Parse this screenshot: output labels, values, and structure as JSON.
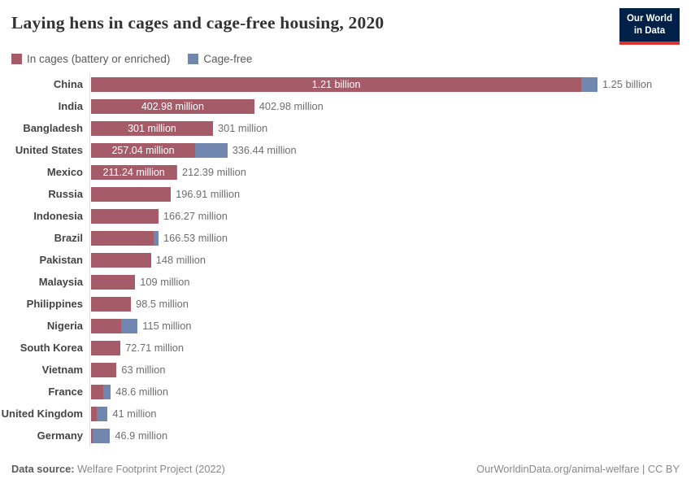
{
  "title": "Laying hens in cages and cage-free housing, 2020",
  "logo": {
    "line1": "Our World",
    "line2": "in Data",
    "bg_color": "#002147",
    "accent_color": "#e0312c"
  },
  "legend": [
    {
      "label": "In cages (battery or enriched)",
      "color": "#a65c68"
    },
    {
      "label": "Cage-free",
      "color": "#7187b0"
    }
  ],
  "colors": {
    "cages": "#a65c68",
    "cage_free": "#7187b0",
    "axis_line": "#dedede",
    "title_text": "#333333",
    "label_text": "#444444",
    "value_text": "#6e6e6e"
  },
  "chart_data": {
    "type": "bar",
    "orientation": "horizontal",
    "stacked": true,
    "unit": "million laying hens",
    "xlim": [
      0,
      1254
    ],
    "grid": false,
    "legend_position": "top-left",
    "categories": [
      "China",
      "India",
      "Bangladesh",
      "United States",
      "Mexico",
      "Russia",
      "Indonesia",
      "Brazil",
      "Pakistan",
      "Malaysia",
      "Philippines",
      "Nigeria",
      "South Korea",
      "Vietnam",
      "France",
      "United Kingdom",
      "Germany"
    ],
    "series": [
      {
        "name": "In cages (battery or enriched)",
        "values": [
          1210,
          402.98,
          301,
          257.04,
          211.24,
          196.91,
          166.27,
          154.5,
          148,
          109,
          98.5,
          74,
          72.71,
          63,
          29,
          13.5,
          4
        ]
      },
      {
        "name": "Cage-free",
        "values": [
          40,
          0,
          0,
          79.4,
          1.15,
          0,
          0,
          12.03,
          0,
          0,
          0,
          41,
          0,
          0,
          19.6,
          27.5,
          42.9
        ]
      }
    ],
    "inside_labels": [
      "1.21 billion",
      "402.98 million",
      "301 million",
      "257.04 million",
      "211.24 million",
      "",
      "",
      "",
      "",
      "",
      "",
      "",
      "",
      "",
      "",
      "",
      ""
    ],
    "total_labels": [
      "1.25 billion",
      "402.98 million",
      "301 million",
      "336.44 million",
      "212.39 million",
      "196.91 million",
      "166.27 million",
      "166.53 million",
      "148 million",
      "109 million",
      "98.5 million",
      "115 million",
      "72.71 million",
      "63 million",
      "48.6 million",
      "41 million",
      "46.9 million"
    ]
  },
  "footer": {
    "datasource_label": "Data source:",
    "datasource_value": " Welfare Footprint Project (2022)",
    "credit": "OurWorldinData.org/animal-welfare | CC BY"
  }
}
